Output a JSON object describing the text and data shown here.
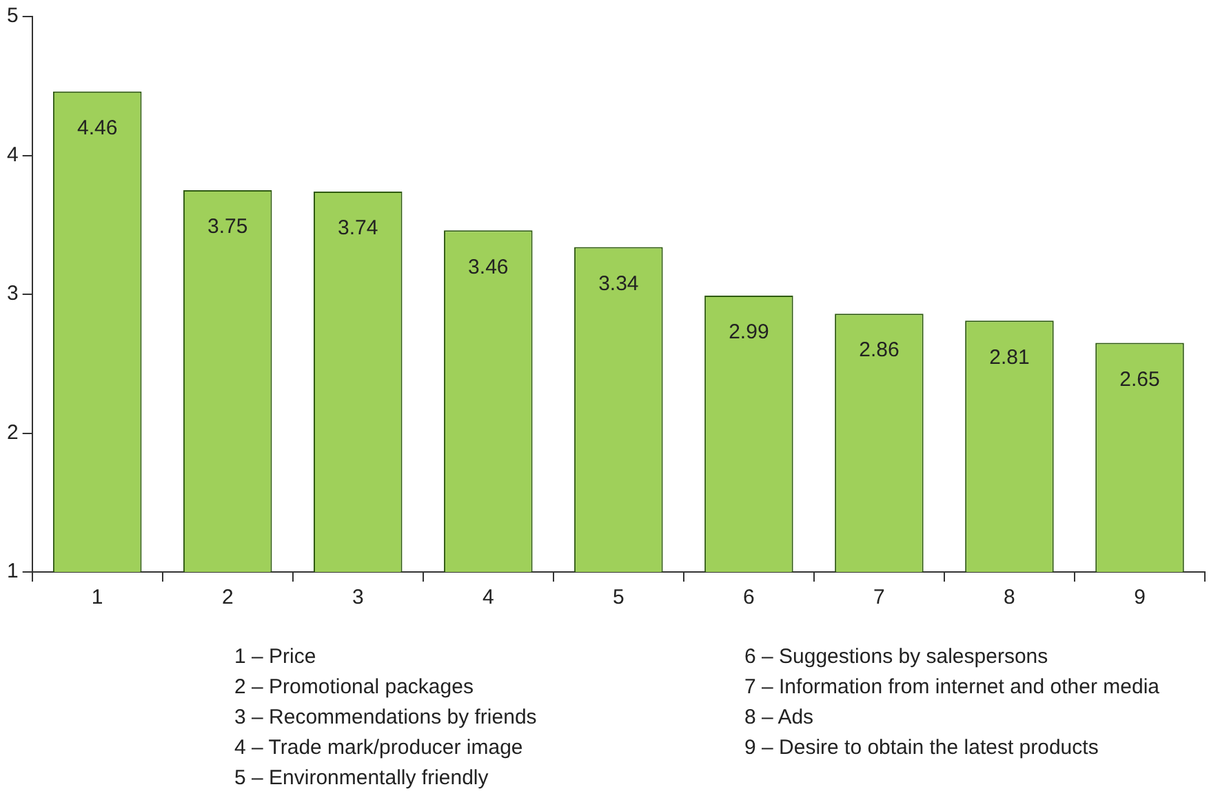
{
  "chart_data": {
    "type": "bar",
    "categories": [
      "1",
      "2",
      "3",
      "4",
      "5",
      "6",
      "7",
      "8",
      "9"
    ],
    "values": [
      4.46,
      3.75,
      3.74,
      3.46,
      3.34,
      2.99,
      2.86,
      2.81,
      2.65
    ],
    "color": "#9fd05a",
    "ylim": [
      1,
      5
    ],
    "yticks": [
      1,
      2,
      3,
      4,
      5
    ],
    "grid": false,
    "legend": false,
    "data_labels": true,
    "annotations": [
      "1 – Price",
      "2 – Promotional packages",
      "3 – Recommendations by friends",
      "4 – Trade mark/producer image",
      "5 – Environmentally friendly",
      "6 – Suggestions by salespersons",
      "7 – Information from internet and other media",
      "8 – Ads",
      "9 – Desire to obtain the latest products"
    ]
  }
}
